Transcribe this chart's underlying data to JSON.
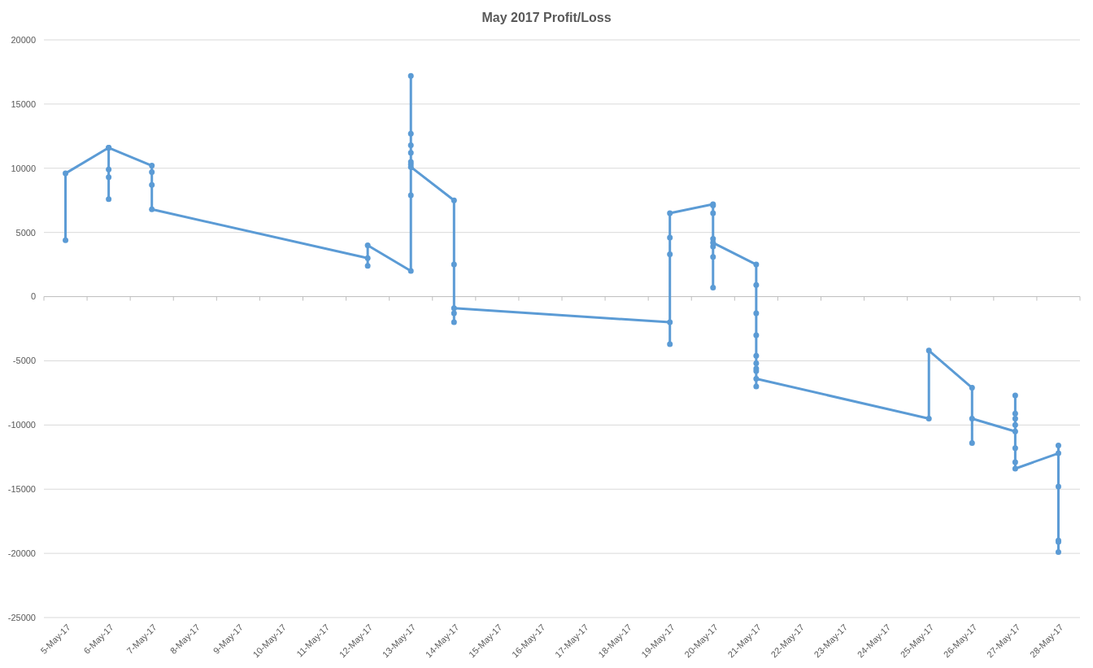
{
  "chart_data": {
    "type": "line",
    "title": "May 2017 Profit/Loss",
    "xlim": [
      "2017-05-04T12:00",
      "2017-05-28T12:00"
    ],
    "xticks": [
      {
        "value": "2017-05-05",
        "label": "5-May-17"
      },
      {
        "value": "2017-05-06",
        "label": "6-May-17"
      },
      {
        "value": "2017-05-07",
        "label": "7-May-17"
      },
      {
        "value": "2017-05-08",
        "label": "8-May-17"
      },
      {
        "value": "2017-05-09",
        "label": "9-May-17"
      },
      {
        "value": "2017-05-10",
        "label": "10-May-17"
      },
      {
        "value": "2017-05-11",
        "label": "11-May-17"
      },
      {
        "value": "2017-05-12",
        "label": "12-May-17"
      },
      {
        "value": "2017-05-13",
        "label": "13-May-17"
      },
      {
        "value": "2017-05-14",
        "label": "14-May-17"
      },
      {
        "value": "2017-05-15",
        "label": "15-May-17"
      },
      {
        "value": "2017-05-16",
        "label": "16-May-17"
      },
      {
        "value": "2017-05-17",
        "label": "17-May-17"
      },
      {
        "value": "2017-05-18",
        "label": "18-May-17"
      },
      {
        "value": "2017-05-19",
        "label": "19-May-17"
      },
      {
        "value": "2017-05-20",
        "label": "20-May-17"
      },
      {
        "value": "2017-05-21",
        "label": "21-May-17"
      },
      {
        "value": "2017-05-22",
        "label": "22-May-17"
      },
      {
        "value": "2017-05-23",
        "label": "23-May-17"
      },
      {
        "value": "2017-05-24",
        "label": "24-May-17"
      },
      {
        "value": "2017-05-25",
        "label": "25-May-17"
      },
      {
        "value": "2017-05-26",
        "label": "26-May-17"
      },
      {
        "value": "2017-05-27",
        "label": "27-May-17"
      },
      {
        "value": "2017-05-28",
        "label": "28-May-17"
      }
    ],
    "ylim": [
      -25000,
      20000
    ],
    "yticks": [
      -25000,
      -20000,
      -15000,
      -10000,
      -5000,
      0,
      5000,
      10000,
      15000,
      20000
    ],
    "grid": "y",
    "marker": "circle",
    "line_style": "solid",
    "series": [
      {
        "color": "#5b9bd5",
        "x": [
          "2017-05-05",
          "2017-05-05",
          "2017-05-06",
          "2017-05-06",
          "2017-05-06",
          "2017-05-06",
          "2017-05-06",
          "2017-05-07",
          "2017-05-07",
          "2017-05-07",
          "2017-05-07",
          "2017-05-12",
          "2017-05-12",
          "2017-05-12",
          "2017-05-13",
          "2017-05-13",
          "2017-05-13",
          "2017-05-13",
          "2017-05-13",
          "2017-05-13",
          "2017-05-13",
          "2017-05-13",
          "2017-05-13",
          "2017-05-14",
          "2017-05-14",
          "2017-05-14",
          "2017-05-14",
          "2017-05-14",
          "2017-05-19",
          "2017-05-19",
          "2017-05-19",
          "2017-05-19",
          "2017-05-19",
          "2017-05-20",
          "2017-05-20",
          "2017-05-20",
          "2017-05-20",
          "2017-05-20",
          "2017-05-20",
          "2017-05-20",
          "2017-05-20",
          "2017-05-21",
          "2017-05-21",
          "2017-05-21",
          "2017-05-21",
          "2017-05-21",
          "2017-05-21",
          "2017-05-21",
          "2017-05-21",
          "2017-05-21",
          "2017-05-21",
          "2017-05-25",
          "2017-05-25",
          "2017-05-26",
          "2017-05-26",
          "2017-05-26",
          "2017-05-27",
          "2017-05-27",
          "2017-05-27",
          "2017-05-27",
          "2017-05-27",
          "2017-05-27",
          "2017-05-27",
          "2017-05-27",
          "2017-05-28",
          "2017-05-28",
          "2017-05-28",
          "2017-05-28",
          "2017-05-28",
          "2017-05-28"
        ],
        "values": [
          4400,
          9600,
          11600,
          9900,
          7600,
          9300,
          11600,
          10200,
          9700,
          8700,
          6800,
          3000,
          2400,
          4000,
          2000,
          17200,
          12700,
          11800,
          11200,
          10500,
          10300,
          7900,
          10100,
          7500,
          2500,
          -1300,
          -2000,
          -900,
          -2000,
          -3700,
          3300,
          4600,
          6500,
          7200,
          7100,
          6500,
          4500,
          3900,
          3100,
          700,
          4200,
          2500,
          900,
          -1300,
          -3000,
          -4600,
          -5200,
          -5600,
          -5800,
          -7000,
          -6400,
          -9500,
          -4200,
          -7100,
          -11400,
          -9500,
          -10500,
          -7700,
          -9100,
          -9500,
          -10000,
          -11800,
          -12900,
          -13400,
          -12200,
          -11600,
          -14800,
          -19000,
          -19100,
          -19900
        ]
      }
    ]
  }
}
